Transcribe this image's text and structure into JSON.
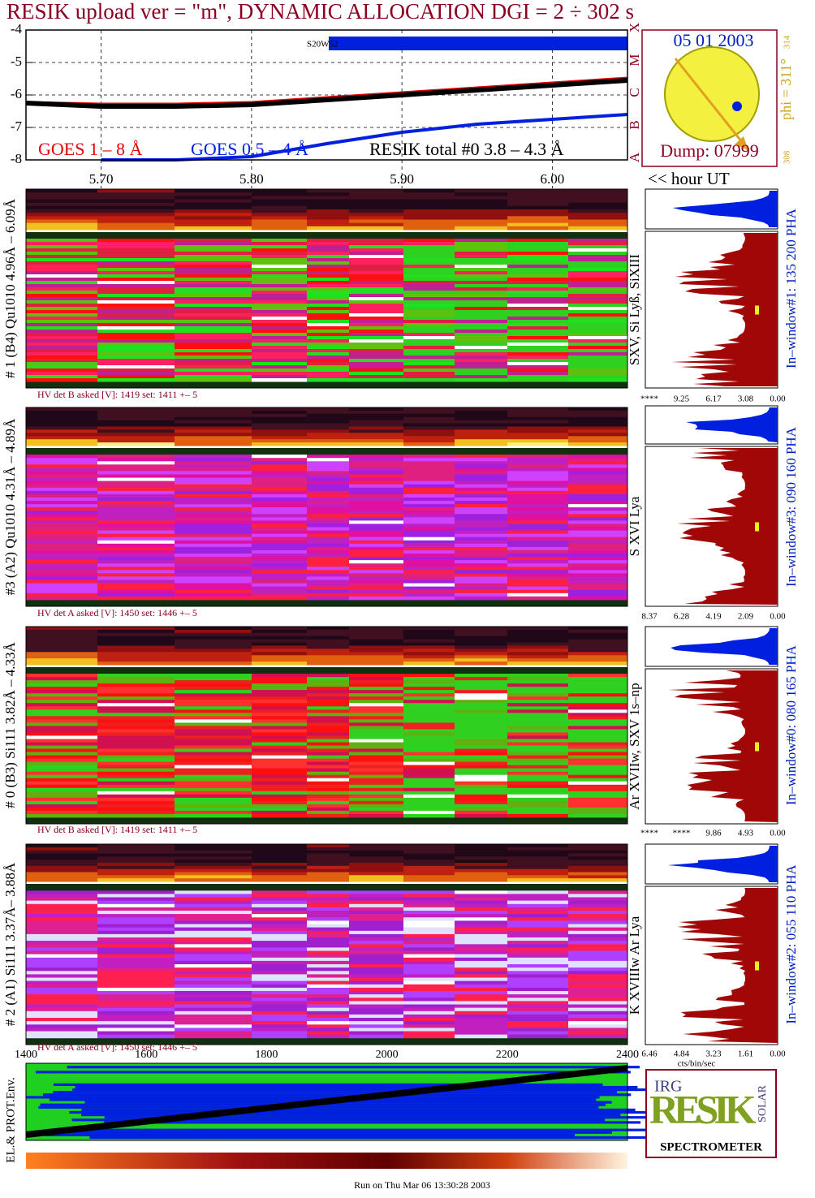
{
  "title": "RESIK upload ver = \"m\", DYNAMIC ALLOCATION  DGI =   2 ÷ 302 s",
  "chart_data": {
    "type": "line",
    "x": [
      5.65,
      5.7,
      5.75,
      5.8,
      5.85,
      5.9,
      5.95,
      6.0,
      6.05
    ],
    "xlim": [
      5.65,
      6.05
    ],
    "xticks": [
      {
        "value": 5.7,
        "label": "5.70"
      },
      {
        "value": 5.8,
        "label": "5.80"
      },
      {
        "value": 5.9,
        "label": "5.90"
      },
      {
        "value": 6.0,
        "label": "6.00"
      }
    ],
    "ylim": [
      -8,
      -4
    ],
    "yticks": [
      -8,
      -7,
      -6,
      -5,
      -4
    ],
    "class_labels": [
      "A",
      "B",
      "C",
      "M",
      "X"
    ],
    "grid": true,
    "series": [
      {
        "name": "GOES 1 – 8 Å",
        "color": "#e00000",
        "values": [
          -6.25,
          -6.3,
          -6.3,
          -6.25,
          -6.1,
          -5.95,
          -5.8,
          -5.65,
          -5.5
        ]
      },
      {
        "name": "GOES 0.5 – 4 Å",
        "color": "#0020e0",
        "values": [
          null,
          -8.0,
          -8.0,
          -7.9,
          -7.5,
          -7.15,
          -6.9,
          -6.75,
          -6.6
        ]
      },
      {
        "name": "RESIK total #0  3.8 – 4.3 Å",
        "color": "#000000",
        "values": [
          -6.25,
          -6.35,
          -6.35,
          -6.3,
          -6.15,
          -6.0,
          -5.85,
          -5.7,
          -5.55
        ]
      }
    ],
    "annotation": "S20W52"
  },
  "x_unit_label": "<< hour UT",
  "sun": {
    "date": "05 01 2003",
    "dump": "Dump: 07999",
    "phi": "phi = 311°",
    "phi_max": "314",
    "phi_min": "308"
  },
  "panels": [
    {
      "label": "# 1 (B4) Qu1010 4.96Å – 6.09Å",
      "hv": "HV det B asked [V]:  1419 set:  1411 +–   5",
      "lines": "SXV, Si Lyß, SiXIII",
      "window": "In–window#1:  135 200 PHA",
      "hist_ticks": [
        "****",
        "9.25",
        "6.17",
        "3.08",
        "0.00"
      ]
    },
    {
      "label": "#3 (A2) Qu1010  4.31Å – 4.89Å",
      "hv": "HV det A asked [V]:  1450 set:  1446 +–   5",
      "lines": "S XVI Lya",
      "window": "In–window#3:  090 160 PHA",
      "hist_ticks": [
        "8.37",
        "6.28",
        "4.19",
        "2.09",
        "0.00"
      ]
    },
    {
      "label": "# 0 (B3) Si111  3.82Å – 4.33Å",
      "hv": "HV det B asked [V]:  1419 set:  1411 +–   5",
      "lines": "Ar XVIIw, SXV 1s–np",
      "window": "In–window#0:  080 165 PHA",
      "hist_ticks": [
        "****",
        "****",
        "9.86",
        "4.93",
        "0.00"
      ]
    },
    {
      "label": "# 2 (A1) Si111  3.37Å– 3.88Å",
      "hv": "HV det A asked [V]:  1450 set:  1446 +–   5",
      "lines": "K XVIIIw  Ar Lya",
      "window": "In–window#2:  055 110 PHA",
      "hist_ticks": [
        "6.46",
        "4.84",
        "3.23",
        "1.61",
        "0.00"
      ]
    }
  ],
  "bottom_axis": [
    1400,
    1600,
    1800,
    2000,
    2200,
    2400
  ],
  "hist_unit": "cts/bin/sec",
  "env_label": "EL.& PROT.Env.",
  "logo": {
    "name": "RESIK",
    "side": "SOLAR",
    "tag": "IRG",
    "caption": "SPECTROMETER"
  },
  "footer": "Run on Thu Mar 06 13:30:28 2003"
}
